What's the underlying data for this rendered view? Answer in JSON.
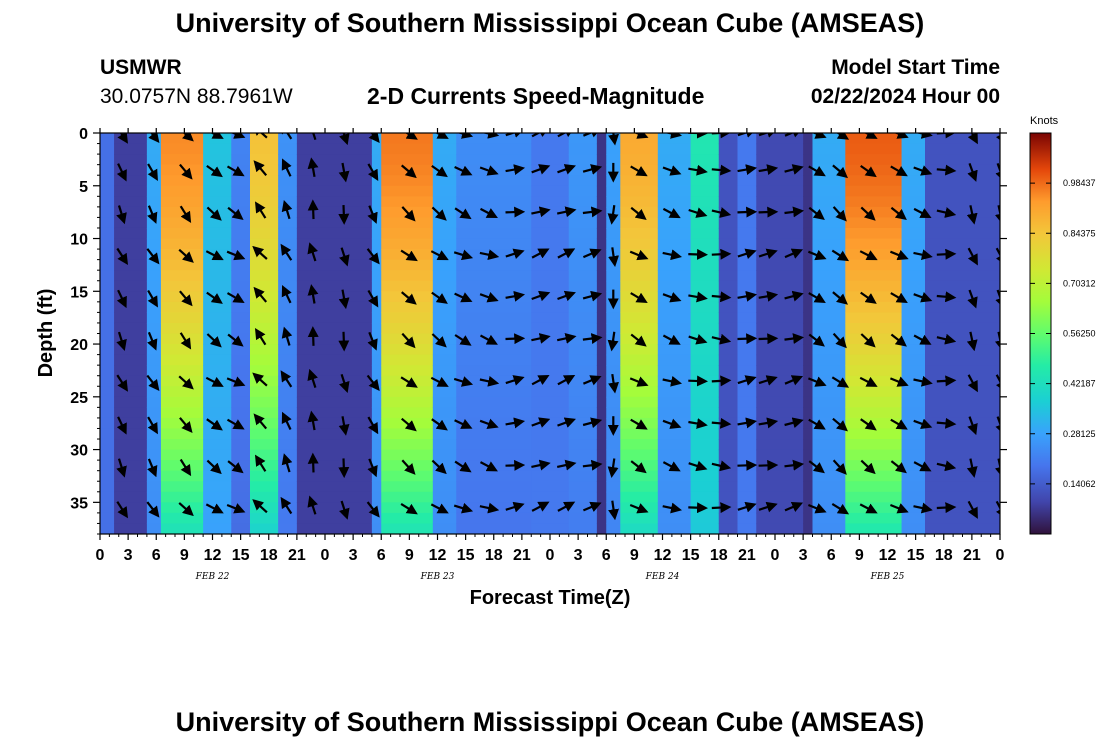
{
  "header": {
    "title": "University of Southern Mississippi Ocean Cube (AMSEAS)",
    "station_name": "USMWR",
    "station_coords": "30.0757N  88.7961W",
    "subtitle": "2-D Currents Speed-Magnitude",
    "model_start_label": "Model Start Time",
    "model_start_value": "02/22/2024 Hour 00"
  },
  "footer": {
    "title": "University of Southern Mississippi Ocean Cube (AMSEAS)"
  },
  "chart_data": {
    "type": "heatmap",
    "title": "2-D Currents Speed-Magnitude",
    "xlabel": "Forecast Time(Z)",
    "ylabel": "Depth (ft)",
    "x_ticks": [
      "0",
      "3",
      "6",
      "9",
      "12",
      "15",
      "18",
      "21",
      "0",
      "3",
      "6",
      "9",
      "12",
      "15",
      "18",
      "21",
      "0",
      "3",
      "6",
      "9",
      "12",
      "15",
      "18",
      "21",
      "0",
      "3",
      "6",
      "9",
      "12",
      "15",
      "18",
      "21",
      "0"
    ],
    "x_day_labels": [
      {
        "label": "FEB 22",
        "hour": 12
      },
      {
        "label": "FEB 23",
        "hour": 36
      },
      {
        "label": "FEB 24",
        "hour": 60
      },
      {
        "label": "FEB 25",
        "hour": 84
      }
    ],
    "x_range_hours": [
      0,
      96
    ],
    "y_ticks": [
      0,
      5,
      10,
      15,
      20,
      25,
      30,
      35
    ],
    "y_range_ft": [
      0,
      38
    ],
    "colorbar": {
      "unit": "Knots",
      "ticks": [
        "0.98437",
        "0.84375",
        "0.70312",
        "0.56250",
        "0.42187",
        "0.28125",
        "0.14062"
      ],
      "range": [
        0.0,
        1.125
      ]
    },
    "speed_bands_knots": [
      {
        "hour_start": 0,
        "hour_end": 1.5,
        "speed": 0.18
      },
      {
        "hour_start": 1.5,
        "hour_end": 5,
        "speed": 0.08
      },
      {
        "hour_start": 5,
        "hour_end": 6.5,
        "speed": 0.3
      },
      {
        "hour_start": 6.5,
        "hour_end": 11,
        "speed": 0.95
      },
      {
        "hour_start": 11,
        "hour_end": 14,
        "speed": 0.35
      },
      {
        "hour_start": 14,
        "hour_end": 16,
        "speed": 0.22
      },
      {
        "hour_start": 16,
        "hour_end": 19,
        "speed": 0.85
      },
      {
        "hour_start": 19,
        "hour_end": 21,
        "speed": 0.25
      },
      {
        "hour_start": 21,
        "hour_end": 29,
        "speed": 0.08
      },
      {
        "hour_start": 29,
        "hour_end": 30,
        "speed": 0.3
      },
      {
        "hour_start": 30,
        "hour_end": 35.5,
        "speed": 0.97
      },
      {
        "hour_start": 35.5,
        "hour_end": 38,
        "speed": 0.3
      },
      {
        "hour_start": 38,
        "hour_end": 46,
        "speed": 0.24
      },
      {
        "hour_start": 46,
        "hour_end": 50,
        "speed": 0.2
      },
      {
        "hour_start": 50,
        "hour_end": 53,
        "speed": 0.26
      },
      {
        "hour_start": 53,
        "hour_end": 54,
        "speed": 0.06
      },
      {
        "hour_start": 54,
        "hour_end": 55.5,
        "speed": 0.28
      },
      {
        "hour_start": 55.5,
        "hour_end": 59.5,
        "speed": 0.9
      },
      {
        "hour_start": 59.5,
        "hour_end": 63,
        "speed": 0.3
      },
      {
        "hour_start": 63,
        "hour_end": 66,
        "speed": 0.45
      },
      {
        "hour_start": 66,
        "hour_end": 68,
        "speed": 0.12
      },
      {
        "hour_start": 68,
        "hour_end": 70,
        "speed": 0.2
      },
      {
        "hour_start": 70,
        "hour_end": 75,
        "speed": 0.1
      },
      {
        "hour_start": 75,
        "hour_end": 76,
        "speed": 0.06
      },
      {
        "hour_start": 76,
        "hour_end": 79.5,
        "speed": 0.3
      },
      {
        "hour_start": 79.5,
        "hour_end": 85.5,
        "speed": 1.0
      },
      {
        "hour_start": 85.5,
        "hour_end": 88,
        "speed": 0.3
      },
      {
        "hour_start": 88,
        "hour_end": 96,
        "speed": 0.12
      }
    ],
    "vector_hours": [
      2.25,
      5.5,
      9,
      12,
      14.25,
      17.25,
      20,
      22.75,
      26,
      29,
      32.75,
      36,
      38.5,
      41.25,
      44,
      46.75,
      49.5,
      52.25,
      54.75,
      57.25,
      60.75,
      63.5,
      66,
      68.75,
      71,
      73.75,
      76.25,
      78.75,
      81.75,
      85,
      87.5,
      90,
      93,
      96
    ],
    "vector_depths_ft": [
      0,
      3.5,
      7.5,
      11.5,
      15.5,
      19.5,
      23.5,
      27.5,
      31.5,
      35.5
    ],
    "vector_column_directions_deg": [
      155,
      150,
      140,
      125,
      120,
      320,
      335,
      350,
      170,
      150,
      130,
      125,
      115,
      110,
      80,
      70,
      70,
      75,
      180,
      120,
      110,
      100,
      95,
      80,
      80,
      75,
      120,
      130,
      125,
      120,
      110,
      95,
      160,
      160
    ]
  }
}
